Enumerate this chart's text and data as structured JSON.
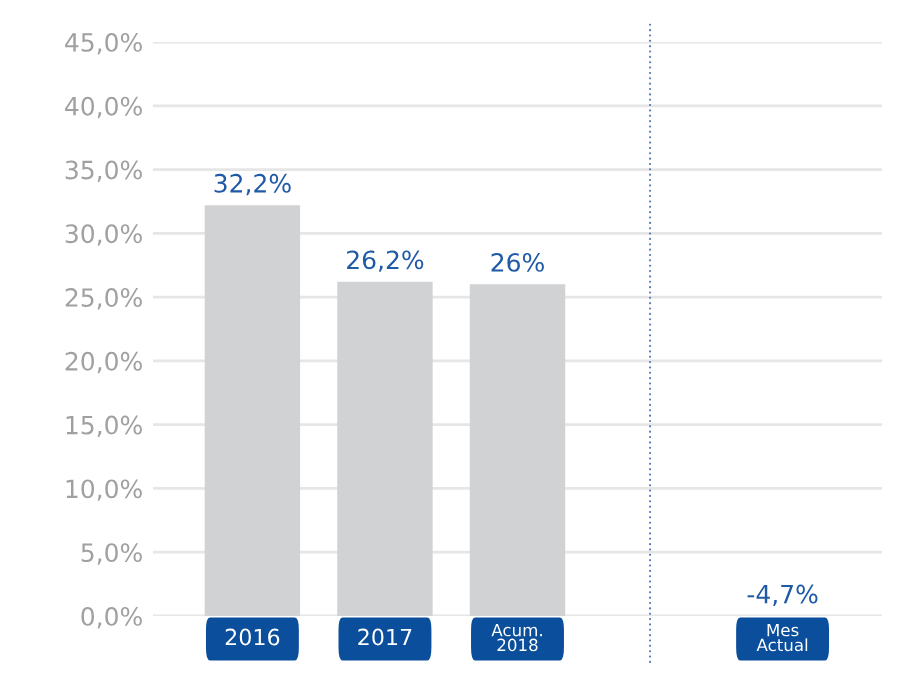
{
  "chart_data": {
    "type": "bar",
    "categories": [
      "2016",
      "2017",
      "Acum.\n2018",
      null,
      "Mes\nActual"
    ],
    "values": [
      32.2,
      26.2,
      26,
      null,
      null
    ],
    "value_labels": [
      "32,2%",
      "26,2%",
      "26%",
      null,
      "-4,7%"
    ],
    "color": "#d1d2d4",
    "ylim": [
      0,
      45
    ],
    "yticks": [
      {
        "value": 0,
        "label": "0,0%"
      },
      {
        "value": 5,
        "label": "5,0%"
      },
      {
        "value": 10,
        "label": "10,0%"
      },
      {
        "value": 15,
        "label": "15,0%"
      },
      {
        "value": 20,
        "label": "20,0%"
      },
      {
        "value": 25,
        "label": "25,0%"
      },
      {
        "value": 30,
        "label": "30,0%"
      },
      {
        "value": 35,
        "label": "35,0%"
      },
      {
        "value": 40,
        "label": "40,0%"
      },
      {
        "value": 45,
        "label": "45,0%"
      }
    ],
    "grid": "y"
  }
}
